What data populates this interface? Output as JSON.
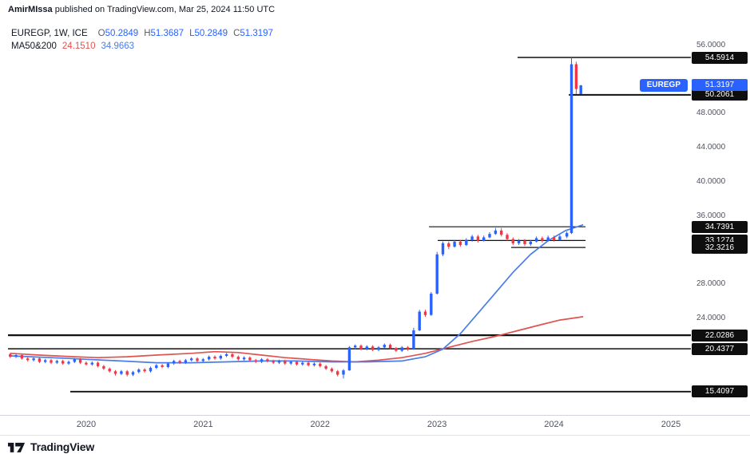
{
  "attribution": {
    "author": "AmirMIssa",
    "text": " published on TradingView.com, Mar 25, 2024 11:50 UTC"
  },
  "legend": {
    "title": "EUREGP, 1W, ICE",
    "ohlc": [
      {
        "k": "O",
        "v": "50.2849"
      },
      {
        "k": "H",
        "v": "51.3687"
      },
      {
        "k": "L",
        "v": "50.2849"
      },
      {
        "k": "C",
        "v": "51.3197"
      }
    ]
  },
  "ma": {
    "label": "MA50&200",
    "v50": "24.1510",
    "v200": "34.9663"
  },
  "symbol_tag": {
    "label": "EUREGP",
    "price": 51.3197
  },
  "footer": {
    "brand": "TradingView"
  },
  "colors": {
    "up": "#2962ff",
    "down": "#f23645",
    "ma50": "#e0534f",
    "ma200": "#4a7de8",
    "level": "#111111",
    "accent": "#2962ff",
    "badge_bg": "#0e0e0e",
    "axis_text": "#50535e"
  },
  "chart_data": {
    "type": "candlestick",
    "title": "EUREGP 1W candlestick chart with MA50 and MA200",
    "xlabel": "",
    "ylabel": "",
    "xlim": [
      2019.331,
      2025.171
    ],
    "ylim": [
      12.68,
      58.71
    ],
    "grid": false,
    "x_ticks": [
      {
        "value": 2020,
        "label": "2020"
      },
      {
        "value": 2021,
        "label": "2021"
      },
      {
        "value": 2022,
        "label": "2022"
      },
      {
        "value": 2023,
        "label": "2023"
      },
      {
        "value": 2024,
        "label": "2024"
      },
      {
        "value": 2025,
        "label": "2025"
      }
    ],
    "y_ticks": [
      {
        "value": 56,
        "label": "56.0000"
      },
      {
        "value": 48,
        "label": "48.0000"
      },
      {
        "value": 44,
        "label": "44.0000"
      },
      {
        "value": 40,
        "label": "40.0000"
      },
      {
        "value": 36,
        "label": "36.0000"
      },
      {
        "value": 28,
        "label": "28.0000"
      },
      {
        "value": 24,
        "label": "24.0000"
      }
    ],
    "badges": [
      {
        "value": 54.5914,
        "label": "54.5914",
        "type": "level"
      },
      {
        "value": 50.2061,
        "label": "50.2061",
        "type": "level"
      },
      {
        "value": 34.7391,
        "label": "34.7391",
        "type": "level"
      },
      {
        "value": 33.1274,
        "label": "33.1274",
        "type": "level"
      },
      {
        "value": 32.3216,
        "label": "32.3216",
        "type": "level"
      },
      {
        "value": 22.0286,
        "label": "22.0286",
        "type": "level"
      },
      {
        "value": 20.4377,
        "label": "20.4377",
        "type": "level"
      },
      {
        "value": 15.4097,
        "label": "15.4097",
        "type": "level"
      },
      {
        "value": 51.3197,
        "label": "51.3197",
        "type": "price"
      }
    ],
    "levels": [
      {
        "price": 54.5914,
        "t1": 2023.689,
        "t2": 2025.171,
        "w": 1.5
      },
      {
        "price": 50.2061,
        "t1": 2024.127,
        "t2": 2025.171,
        "w": 2
      },
      {
        "price": 34.7391,
        "t1": 2022.931,
        "t2": 2024.27,
        "w": 1.2
      },
      {
        "price": 33.1274,
        "t1": 2023.006,
        "t2": 2024.27,
        "w": 1.2
      },
      {
        "price": 32.3216,
        "t1": 2023.634,
        "t2": 2024.27,
        "w": 1.2
      },
      {
        "price": 22.0286,
        "t1": 2019.331,
        "t2": 2025.171,
        "w": 2.2
      },
      {
        "price": 20.4377,
        "t1": 2019.331,
        "t2": 2025.171,
        "w": 1.5
      },
      {
        "price": 15.4097,
        "t1": 2019.864,
        "t2": 2025.171,
        "w": 1.8
      }
    ],
    "ma50_points": [
      [
        2019.35,
        19.9
      ],
      [
        2019.6,
        19.7
      ],
      [
        2019.9,
        19.5
      ],
      [
        2020.1,
        19.4
      ],
      [
        2020.35,
        19.5
      ],
      [
        2020.6,
        19.7
      ],
      [
        2020.9,
        19.9
      ],
      [
        2021.1,
        20.1
      ],
      [
        2021.3,
        20.0
      ],
      [
        2021.5,
        19.7
      ],
      [
        2021.7,
        19.4
      ],
      [
        2021.9,
        19.2
      ],
      [
        2022.1,
        19.0
      ],
      [
        2022.3,
        18.9
      ],
      [
        2022.5,
        19.1
      ],
      [
        2022.7,
        19.4
      ],
      [
        2022.9,
        19.9
      ],
      [
        2023.1,
        20.6
      ],
      [
        2023.3,
        21.3
      ],
      [
        2023.5,
        21.9
      ],
      [
        2023.7,
        22.6
      ],
      [
        2023.9,
        23.3
      ],
      [
        2024.05,
        23.8
      ],
      [
        2024.25,
        24.2
      ]
    ],
    "ma200_points": [
      [
        2019.35,
        19.6
      ],
      [
        2019.7,
        19.4
      ],
      [
        2020.0,
        19.2
      ],
      [
        2020.3,
        19.0
      ],
      [
        2020.6,
        18.8
      ],
      [
        2020.9,
        18.8
      ],
      [
        2021.2,
        18.9
      ],
      [
        2021.5,
        19.0
      ],
      [
        2021.8,
        19.0
      ],
      [
        2022.1,
        18.9
      ],
      [
        2022.4,
        18.9
      ],
      [
        2022.7,
        19.0
      ],
      [
        2022.9,
        19.5
      ],
      [
        2023.05,
        20.4
      ],
      [
        2023.2,
        22.2
      ],
      [
        2023.35,
        24.6
      ],
      [
        2023.5,
        27.0
      ],
      [
        2023.65,
        29.4
      ],
      [
        2023.8,
        31.5
      ],
      [
        2023.95,
        33.1
      ],
      [
        2024.1,
        34.3
      ],
      [
        2024.25,
        34.97
      ]
    ],
    "candles": [
      [
        2019.35,
        19.8,
        19.95,
        19.35,
        19.5
      ],
      [
        2019.4,
        19.5,
        19.85,
        19.35,
        19.7
      ],
      [
        2019.45,
        19.7,
        19.85,
        19.15,
        19.3
      ],
      [
        2019.5,
        19.3,
        19.45,
        18.95,
        19.1
      ],
      [
        2019.55,
        19.1,
        19.45,
        18.95,
        19.3
      ],
      [
        2019.6,
        19.3,
        19.45,
        18.75,
        18.9
      ],
      [
        2019.65,
        18.9,
        19.25,
        18.75,
        19.1
      ],
      [
        2019.7,
        19.1,
        19.25,
        18.65,
        18.8
      ],
      [
        2019.75,
        18.8,
        19.15,
        18.65,
        19.0
      ],
      [
        2019.8,
        19.0,
        19.15,
        18.55,
        18.7
      ],
      [
        2019.85,
        18.7,
        19.05,
        18.55,
        18.9
      ],
      [
        2019.9,
        18.9,
        19.35,
        18.75,
        19.2
      ],
      [
        2019.95,
        19.2,
        19.35,
        18.65,
        18.8
      ],
      [
        2020.0,
        18.8,
        18.95,
        18.45,
        18.6
      ],
      [
        2020.05,
        18.6,
        18.95,
        18.45,
        18.8
      ],
      [
        2020.1,
        18.8,
        18.95,
        18.25,
        18.4
      ],
      [
        2020.15,
        18.4,
        18.55,
        17.95,
        18.1
      ],
      [
        2020.2,
        18.1,
        18.25,
        17.65,
        17.8
      ],
      [
        2020.25,
        17.8,
        17.95,
        17.3,
        17.5
      ],
      [
        2020.3,
        17.5,
        17.95,
        17.35,
        17.8
      ],
      [
        2020.35,
        17.8,
        17.95,
        17.2,
        17.4
      ],
      [
        2020.4,
        17.4,
        17.85,
        17.25,
        17.7
      ],
      [
        2020.45,
        17.7,
        18.15,
        17.55,
        18.0
      ],
      [
        2020.5,
        18.0,
        18.15,
        17.65,
        17.8
      ],
      [
        2020.55,
        17.8,
        18.35,
        17.65,
        18.2
      ],
      [
        2020.6,
        18.2,
        18.65,
        18.05,
        18.5
      ],
      [
        2020.65,
        18.5,
        18.65,
        18.15,
        18.3
      ],
      [
        2020.7,
        18.3,
        18.85,
        18.15,
        18.7
      ],
      [
        2020.75,
        18.7,
        19.15,
        18.55,
        19.0
      ],
      [
        2020.8,
        19.0,
        19.15,
        18.65,
        18.8
      ],
      [
        2020.85,
        18.8,
        19.25,
        18.65,
        19.1
      ],
      [
        2020.9,
        19.1,
        19.45,
        18.95,
        19.3
      ],
      [
        2020.95,
        19.3,
        19.45,
        18.85,
        19.0
      ],
      [
        2021.0,
        19.0,
        19.35,
        18.85,
        19.2
      ],
      [
        2021.05,
        19.2,
        19.65,
        19.05,
        19.5
      ],
      [
        2021.1,
        19.5,
        19.65,
        19.15,
        19.3
      ],
      [
        2021.15,
        19.3,
        19.75,
        19.15,
        19.6
      ],
      [
        2021.2,
        19.6,
        19.95,
        19.45,
        19.8
      ],
      [
        2021.25,
        19.8,
        19.95,
        19.35,
        19.5
      ],
      [
        2021.3,
        19.5,
        19.65,
        19.05,
        19.2
      ],
      [
        2021.35,
        19.2,
        19.55,
        19.05,
        19.4
      ],
      [
        2021.4,
        19.4,
        19.55,
        18.95,
        19.1
      ],
      [
        2021.45,
        19.1,
        19.25,
        18.75,
        18.9
      ],
      [
        2021.5,
        18.9,
        19.35,
        18.75,
        19.2
      ],
      [
        2021.55,
        19.2,
        19.35,
        18.85,
        19.0
      ],
      [
        2021.6,
        19.0,
        19.15,
        18.65,
        18.8
      ],
      [
        2021.65,
        18.8,
        19.15,
        18.65,
        19.0
      ],
      [
        2021.7,
        19.0,
        19.15,
        18.55,
        18.7
      ],
      [
        2021.75,
        18.7,
        19.05,
        18.55,
        18.9
      ],
      [
        2021.8,
        18.9,
        19.05,
        18.45,
        18.6
      ],
      [
        2021.85,
        18.6,
        18.95,
        18.45,
        18.8
      ],
      [
        2021.9,
        18.8,
        18.95,
        18.35,
        18.5
      ],
      [
        2021.95,
        18.5,
        18.85,
        18.35,
        18.7
      ],
      [
        2022.0,
        18.7,
        18.85,
        18.25,
        18.4
      ],
      [
        2022.05,
        18.4,
        18.55,
        17.95,
        18.1
      ],
      [
        2022.1,
        18.1,
        18.25,
        17.65,
        17.8
      ],
      [
        2022.15,
        17.8,
        17.95,
        17.2,
        17.4
      ],
      [
        2022.2,
        17.4,
        18.05,
        16.95,
        17.9
      ],
      [
        2022.25,
        17.9,
        20.75,
        17.85,
        20.6
      ],
      [
        2022.3,
        20.6,
        20.95,
        20.35,
        20.8
      ],
      [
        2022.35,
        20.8,
        20.95,
        20.25,
        20.4
      ],
      [
        2022.4,
        20.4,
        20.85,
        20.25,
        20.7
      ],
      [
        2022.45,
        20.7,
        20.85,
        20.15,
        20.3
      ],
      [
        2022.5,
        20.3,
        20.75,
        20.15,
        20.6
      ],
      [
        2022.55,
        20.6,
        21.05,
        20.45,
        20.9
      ],
      [
        2022.6,
        20.9,
        21.05,
        20.35,
        20.5
      ],
      [
        2022.65,
        20.5,
        20.65,
        20.05,
        20.2
      ],
      [
        2022.7,
        20.2,
        20.75,
        20.05,
        20.6
      ],
      [
        2022.75,
        20.6,
        20.75,
        20.2,
        20.4
      ],
      [
        2022.8,
        20.4,
        22.9,
        20.3,
        22.6
      ],
      [
        2022.85,
        22.6,
        25.0,
        22.5,
        24.8
      ],
      [
        2022.9,
        24.8,
        25.0,
        24.2,
        24.4
      ],
      [
        2022.95,
        24.4,
        27.1,
        24.3,
        26.9
      ],
      [
        2023.0,
        26.9,
        31.8,
        26.8,
        31.5
      ],
      [
        2023.05,
        31.5,
        33.0,
        31.3,
        32.8
      ],
      [
        2023.1,
        32.8,
        33.0,
        32.1,
        32.4
      ],
      [
        2023.15,
        32.4,
        33.2,
        32.3,
        33.0
      ],
      [
        2023.2,
        33.0,
        33.2,
        32.4,
        32.6
      ],
      [
        2023.25,
        32.6,
        33.4,
        32.5,
        33.2
      ],
      [
        2023.3,
        33.2,
        33.8,
        33.0,
        33.6
      ],
      [
        2023.35,
        33.6,
        33.8,
        32.9,
        33.1
      ],
      [
        2023.4,
        33.1,
        33.7,
        33.0,
        33.5
      ],
      [
        2023.45,
        33.5,
        34.1,
        33.4,
        33.9
      ],
      [
        2023.5,
        33.9,
        34.6,
        33.8,
        34.3
      ],
      [
        2023.55,
        34.3,
        34.6,
        33.6,
        33.8
      ],
      [
        2023.6,
        33.8,
        34.0,
        33.1,
        33.3
      ],
      [
        2023.65,
        33.3,
        33.5,
        32.6,
        32.8
      ],
      [
        2023.7,
        32.8,
        33.3,
        32.6,
        33.1
      ],
      [
        2023.75,
        33.1,
        33.3,
        32.5,
        32.7
      ],
      [
        2023.8,
        32.7,
        33.2,
        32.5,
        33.0
      ],
      [
        2023.85,
        33.0,
        33.6,
        32.9,
        33.4
      ],
      [
        2023.9,
        33.4,
        33.6,
        32.9,
        33.1
      ],
      [
        2023.95,
        33.1,
        33.7,
        33.0,
        33.5
      ],
      [
        2024.0,
        33.5,
        33.7,
        33.0,
        33.2
      ],
      [
        2024.05,
        33.2,
        33.8,
        33.1,
        33.6
      ],
      [
        2024.11,
        33.6,
        34.2,
        33.4,
        34.0
      ],
      [
        2024.15,
        34.0,
        54.5914,
        33.9,
        53.8
      ],
      [
        2024.19,
        53.8,
        54.1,
        50.3,
        50.9
      ],
      [
        2024.23,
        50.2849,
        51.3687,
        50.2849,
        51.3197
      ]
    ]
  }
}
